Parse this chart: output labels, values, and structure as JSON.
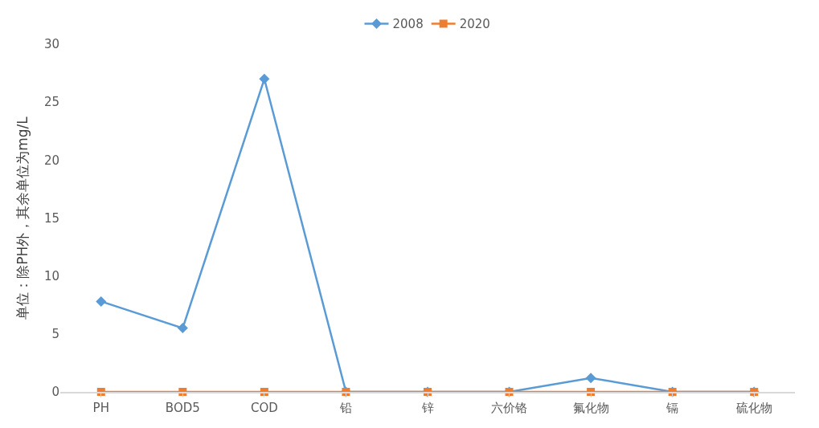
{
  "chart_data": {
    "type": "line",
    "ylabel": "单位：除PH外，其余单位为mg/L",
    "categories": [
      "PH",
      "BOD5",
      "COD",
      "铅",
      "锌",
      "六价铬",
      "氟化物",
      "镉",
      "硫化物"
    ],
    "series": [
      {
        "name": "2008",
        "color": "#5b9bd5",
        "marker": "diamond",
        "values": [
          7.8,
          5.5,
          27,
          0,
          0,
          0,
          1.2,
          0,
          0
        ]
      },
      {
        "name": "2020",
        "color": "#ed7d31",
        "marker": "square",
        "values": [
          0,
          0,
          0,
          0,
          0,
          0,
          0,
          0,
          0
        ]
      }
    ],
    "ylim": [
      0,
      30
    ],
    "yticks": [
      0,
      5,
      10,
      15,
      20,
      25,
      30
    ],
    "legend": "top"
  }
}
